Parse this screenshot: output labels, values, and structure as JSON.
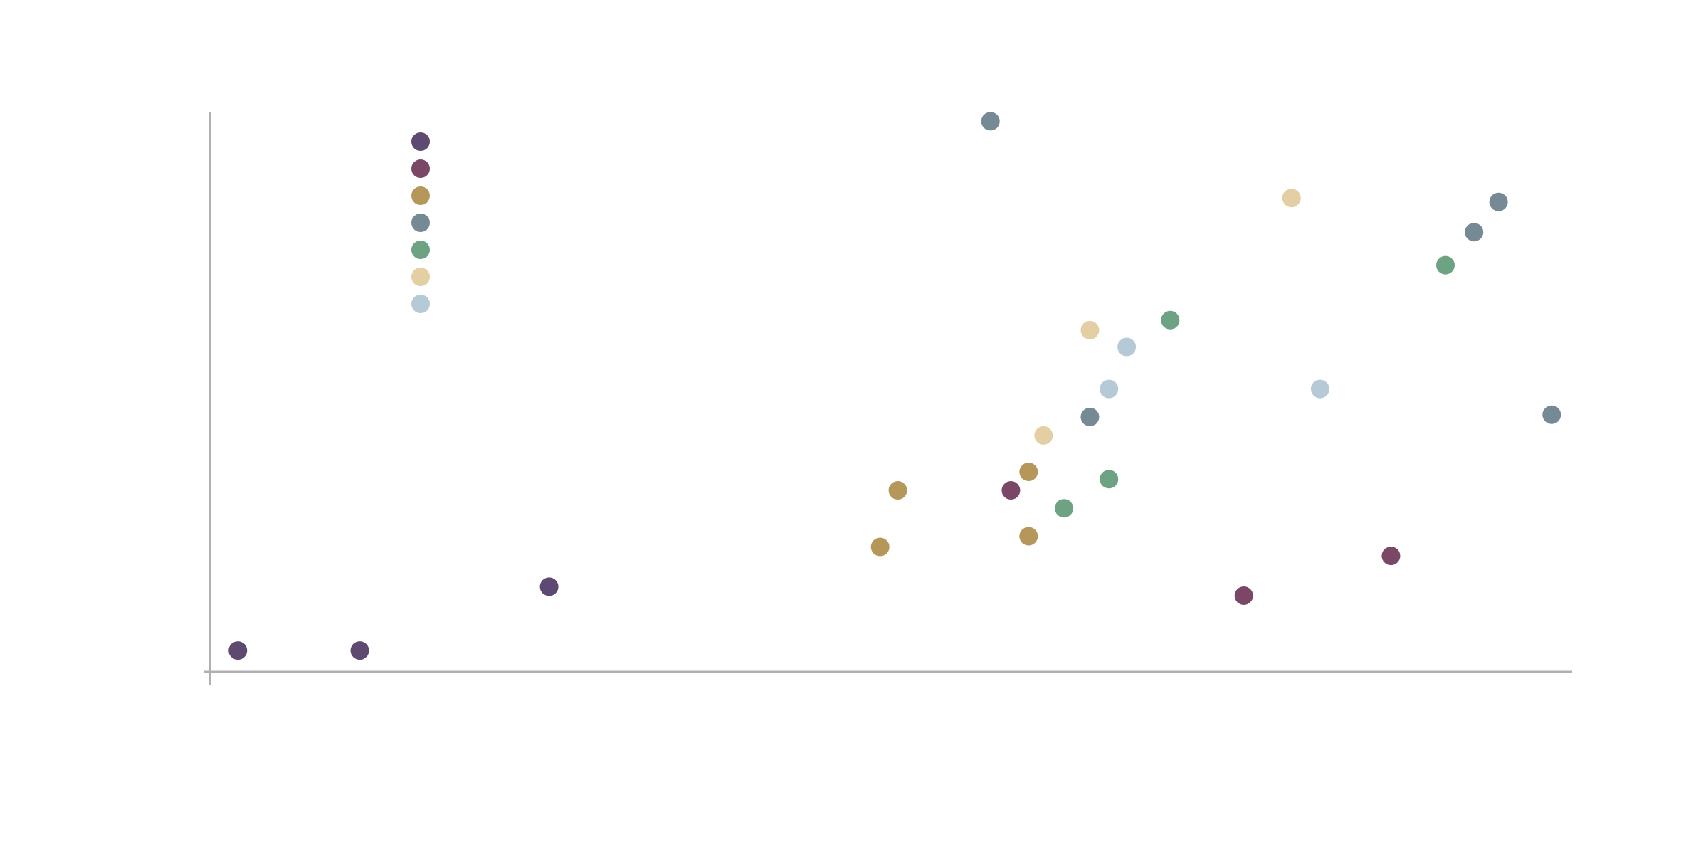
{
  "chart_data": {
    "type": "scatter",
    "xlim": [
      0,
      100
    ],
    "ylim": [
      0,
      100
    ],
    "legend": "top-left",
    "series": [
      {
        "color": "#5e4a70",
        "x": [
          2.05,
          11.0,
          24.9
        ],
        "values": [
          3.8,
          3.8,
          15.2
        ]
      },
      {
        "color": "#7a4866",
        "x": [
          58.8,
          75.9,
          86.7
        ],
        "values": [
          32.4,
          13.6,
          20.7
        ]
      },
      {
        "color": "#b5975a",
        "x": [
          50.5,
          49.2,
          60.1,
          60.1
        ],
        "values": [
          32.4,
          22.3,
          35.7,
          24.2
        ]
      },
      {
        "color": "#768a96",
        "x": [
          57.3,
          64.6,
          92.8,
          94.6,
          98.5
        ],
        "values": [
          98.3,
          45.5,
          78.5,
          83.9,
          45.9
        ]
      },
      {
        "color": "#6da383",
        "x": [
          62.7,
          66.0,
          70.5,
          90.7
        ],
        "values": [
          29.2,
          34.4,
          62.8,
          72.6
        ]
      },
      {
        "color": "#e3cfa3",
        "x": [
          61.2,
          64.6,
          79.4
        ],
        "values": [
          42.2,
          61.0,
          84.6
        ]
      },
      {
        "color": "#b5cad6",
        "x": [
          66.0,
          67.3,
          81.5
        ],
        "values": [
          50.5,
          58.0,
          50.5
        ]
      }
    ]
  }
}
